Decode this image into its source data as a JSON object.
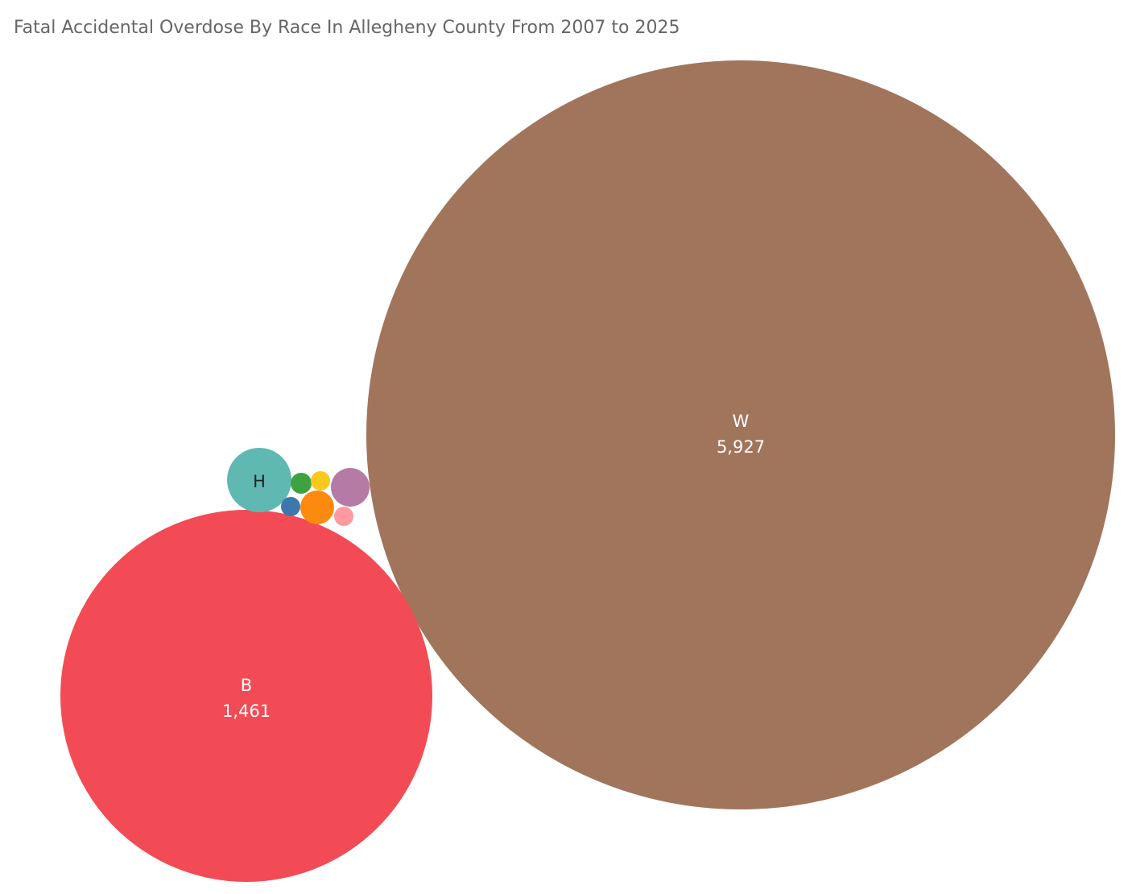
{
  "chart_data": {
    "type": "bubble",
    "title": "Fatal Accidental Overdose By Race In Allegheny County From 2007 to 2025",
    "series": [
      {
        "label": "W",
        "value": 5927,
        "value_label": "5,927",
        "color": "#a1745c",
        "text_color": "#ffffff"
      },
      {
        "label": "B",
        "value": 1461,
        "value_label": "1,461",
        "color": "#f34b55",
        "text_color": "#ffffff"
      },
      {
        "label": "H",
        "color": "#5fb8b1",
        "text_color": "#222222"
      },
      {
        "color": "#b57aa5"
      },
      {
        "color": "#fc8a0e"
      },
      {
        "color": "#3ea240"
      },
      {
        "color": "#f9c91b"
      },
      {
        "color": "#3e77ad"
      },
      {
        "color": "#fe99a2"
      }
    ]
  }
}
